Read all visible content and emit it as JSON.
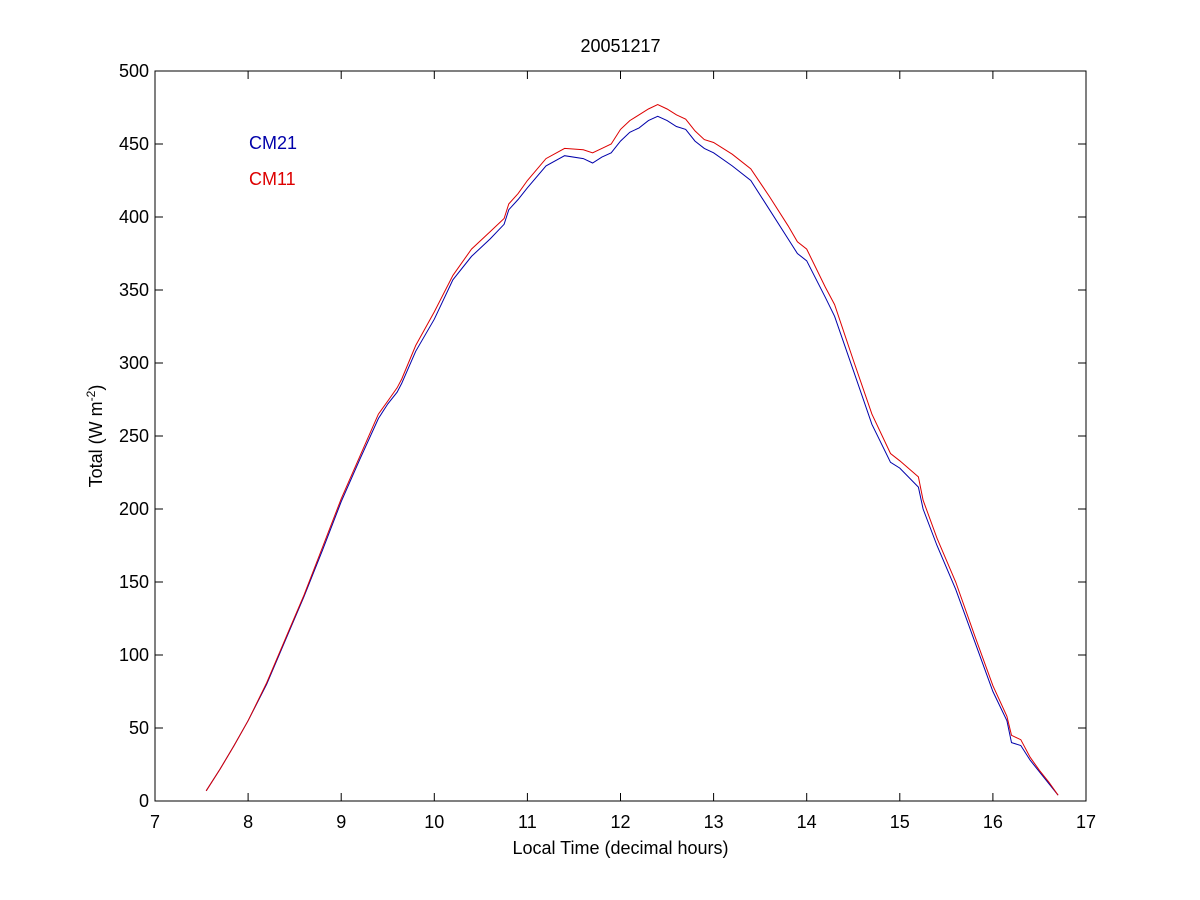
{
  "chart_data": {
    "type": "line",
    "title": "20051217",
    "xlabel": "Local Time (decimal hours)",
    "ylabel": "Total (W m",
    "ylabel_sup": "-2",
    "ylabel_end": ")",
    "xlim": [
      7,
      17
    ],
    "ylim": [
      0,
      500
    ],
    "xticks": [
      7,
      8,
      9,
      10,
      11,
      12,
      13,
      14,
      15,
      16,
      17
    ],
    "yticks": [
      0,
      50,
      100,
      150,
      200,
      250,
      300,
      350,
      400,
      450,
      500
    ],
    "grid": false,
    "legend_placement": "top-left",
    "series": [
      {
        "name": "CM21",
        "color": "#0000aa",
        "x": [
          7.55,
          7.7,
          7.85,
          8.0,
          8.2,
          8.4,
          8.6,
          8.8,
          9.0,
          9.2,
          9.4,
          9.5,
          9.6,
          9.65,
          9.8,
          10.0,
          10.2,
          10.4,
          10.6,
          10.75,
          10.8,
          10.9,
          11.0,
          11.2,
          11.4,
          11.6,
          11.7,
          11.8,
          11.9,
          12.0,
          12.1,
          12.2,
          12.3,
          12.4,
          12.5,
          12.6,
          12.7,
          12.8,
          12.9,
          13.0,
          13.2,
          13.4,
          13.6,
          13.8,
          13.9,
          14.0,
          14.2,
          14.3,
          14.5,
          14.7,
          14.9,
          15.0,
          15.2,
          15.25,
          15.4,
          15.6,
          15.8,
          16.0,
          16.15,
          16.2,
          16.3,
          16.4,
          16.5,
          16.6,
          16.7
        ],
        "values": [
          7,
          22,
          38,
          55,
          80,
          110,
          140,
          172,
          205,
          234,
          262,
          272,
          280,
          286,
          308,
          330,
          357,
          373,
          385,
          395,
          405,
          412,
          420,
          435,
          442,
          440,
          437,
          441,
          444,
          452,
          458,
          461,
          466,
          469,
          466,
          462,
          460,
          452,
          447,
          444,
          435,
          425,
          405,
          385,
          375,
          370,
          345,
          332,
          295,
          258,
          232,
          228,
          215,
          200,
          175,
          145,
          110,
          75,
          55,
          40,
          38,
          28,
          20,
          12,
          4
        ]
      },
      {
        "name": "CM11",
        "color": "#dd0000",
        "x": [
          7.55,
          7.7,
          7.85,
          8.0,
          8.2,
          8.4,
          8.6,
          8.8,
          9.0,
          9.2,
          9.4,
          9.5,
          9.6,
          9.65,
          9.8,
          10.0,
          10.2,
          10.4,
          10.6,
          10.75,
          10.8,
          10.9,
          11.0,
          11.2,
          11.4,
          11.6,
          11.7,
          11.8,
          11.9,
          12.0,
          12.1,
          12.2,
          12.3,
          12.4,
          12.5,
          12.6,
          12.7,
          12.8,
          12.9,
          13.0,
          13.2,
          13.4,
          13.6,
          13.8,
          13.9,
          14.0,
          14.2,
          14.3,
          14.5,
          14.7,
          14.9,
          15.0,
          15.2,
          15.25,
          15.4,
          15.6,
          15.8,
          16.0,
          16.15,
          16.2,
          16.3,
          16.4,
          16.5,
          16.6,
          16.7
        ],
        "values": [
          7,
          22,
          38,
          55,
          81,
          111,
          141,
          174,
          207,
          236,
          265,
          274,
          283,
          289,
          312,
          335,
          360,
          378,
          390,
          399,
          409,
          416,
          425,
          440,
          447,
          446,
          444,
          447,
          450,
          460,
          466,
          470,
          474,
          477,
          474,
          470,
          467,
          459,
          453,
          451,
          443,
          433,
          414,
          394,
          383,
          378,
          352,
          340,
          302,
          265,
          238,
          233,
          222,
          206,
          180,
          150,
          114,
          79,
          58,
          45,
          42,
          30,
          21,
          13,
          4
        ]
      }
    ]
  }
}
